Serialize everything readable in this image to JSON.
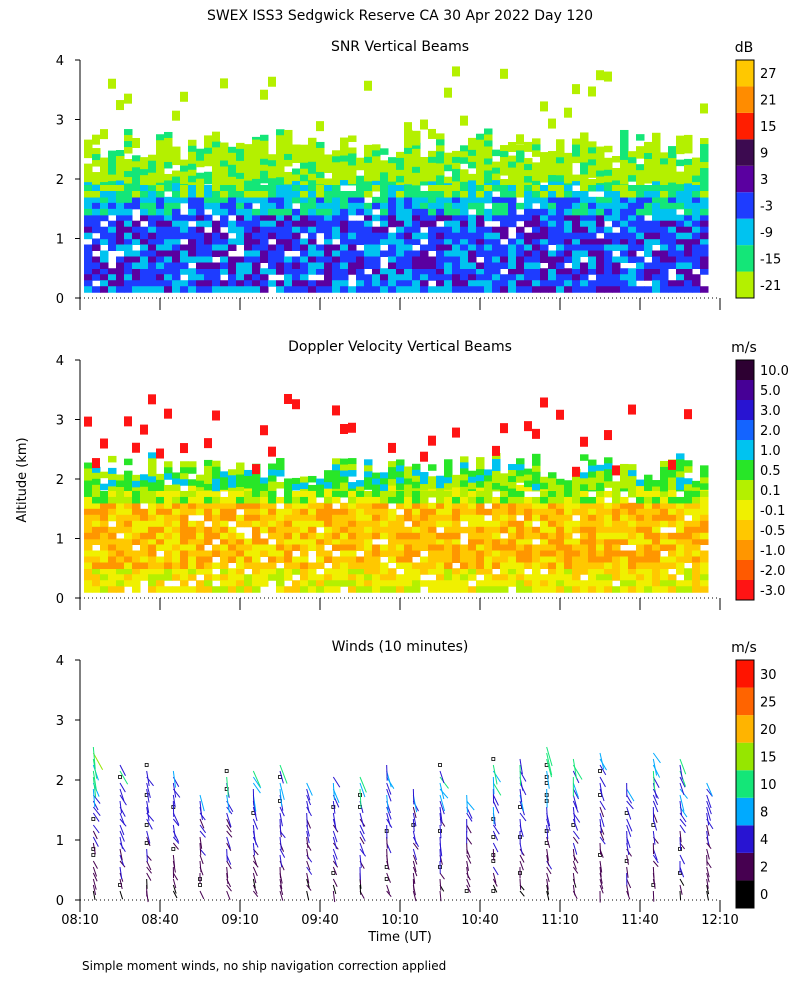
{
  "figure": {
    "title": "SWEX ISS3 Sedgwick Reserve CA  30 Apr 2022 Day 120",
    "ylabel": "Altitude (km)",
    "xlabel": "Time (UT)",
    "footnote": "Simple moment winds, no ship navigation correction applied"
  },
  "chart_data": [
    {
      "type": "heatmap",
      "title": "SNR Vertical Beams",
      "units": "dB",
      "x_ticks": [
        "08:10",
        "08:40",
        "09:10",
        "09:40",
        "10:10",
        "10:40",
        "11:10",
        "11:40",
        "12:10"
      ],
      "y_ticks": [
        0,
        1,
        2,
        3,
        4
      ],
      "xlim": [
        "08:10",
        "12:10"
      ],
      "ylim": [
        0,
        4
      ],
      "color_levels": [
        {
          "label": "-21",
          "color": "#b4f000"
        },
        {
          "label": "-15",
          "color": "#14e678"
        },
        {
          "label": "-9",
          "color": "#00c3f0"
        },
        {
          "label": "-3",
          "color": "#1e3cff"
        },
        {
          "label": "3",
          "color": "#5a00a0"
        },
        {
          "label": "9",
          "color": "#3c0a50"
        },
        {
          "label": "15",
          "color": "#ff1e00"
        },
        {
          "label": "21",
          "color": "#ff8c00"
        },
        {
          "label": "27",
          "color": "#ffc800"
        }
      ],
      "profile": [
        {
          "alt_max": 0.5,
          "level": "-3"
        },
        {
          "alt_max": 1.0,
          "level": "-3"
        },
        {
          "alt_max": 1.4,
          "level": "-3"
        },
        {
          "alt_max": 1.7,
          "level": "-9"
        },
        {
          "alt_max": 2.0,
          "level": "-15"
        },
        {
          "alt_max": 2.6,
          "level": "-21"
        }
      ]
    },
    {
      "type": "heatmap",
      "title": "Doppler Velocity Vertical Beams",
      "units": "m/s",
      "x_ticks": [
        "08:10",
        "08:40",
        "09:10",
        "09:40",
        "10:10",
        "10:40",
        "11:10",
        "11:40",
        "12:10"
      ],
      "y_ticks": [
        0,
        1,
        2,
        3,
        4
      ],
      "xlim": [
        "08:10",
        "12:10"
      ],
      "ylim": [
        0,
        4
      ],
      "color_levels": [
        {
          "label": "-3.0",
          "color": "#ff1414"
        },
        {
          "label": "-2.0",
          "color": "#ff5a00"
        },
        {
          "label": "-1.0",
          "color": "#ff9600"
        },
        {
          "label": "-0.5",
          "color": "#ffc800"
        },
        {
          "label": "-0.1",
          "color": "#f0f000"
        },
        {
          "label": "0.1",
          "color": "#b4f000"
        },
        {
          "label": "0.5",
          "color": "#28e628"
        },
        {
          "label": "1.0",
          "color": "#00c3f0"
        },
        {
          "label": "2.0",
          "color": "#1464ff"
        },
        {
          "label": "3.0",
          "color": "#2814d2"
        },
        {
          "label": "5.0",
          "color": "#460096"
        },
        {
          "label": "10.0",
          "color": "#2d0032"
        }
      ],
      "profile": [
        {
          "alt_max": 0.5,
          "level": "-0.1"
        },
        {
          "alt_max": 1.0,
          "level": "-0.5"
        },
        {
          "alt_max": 1.6,
          "level": "-0.5"
        },
        {
          "alt_max": 1.9,
          "level": "0.1"
        },
        {
          "alt_max": 2.2,
          "level": "0.5"
        }
      ]
    },
    {
      "type": "scatter",
      "title": "Winds (10 minutes)",
      "units": "m/s",
      "x_ticks": [
        "08:10",
        "08:40",
        "09:10",
        "09:40",
        "10:10",
        "10:40",
        "11:10",
        "11:40",
        "12:10"
      ],
      "y_ticks": [
        0,
        1,
        2,
        3,
        4
      ],
      "xlim": [
        "08:10",
        "12:10"
      ],
      "ylim": [
        0,
        4
      ],
      "color_levels": [
        {
          "label": "0",
          "color": "#000000"
        },
        {
          "label": "2",
          "color": "#460050"
        },
        {
          "label": "4",
          "color": "#2814d2"
        },
        {
          "label": "8",
          "color": "#00aaff"
        },
        {
          "label": "10",
          "color": "#14e678"
        },
        {
          "label": "15",
          "color": "#96e600"
        },
        {
          "label": "20",
          "color": "#ffb400"
        },
        {
          "label": "25",
          "color": "#ff6400"
        },
        {
          "label": "30",
          "color": "#ff1400"
        }
      ],
      "profile_times": [
        "08:15",
        "08:25",
        "08:35",
        "08:45",
        "08:55",
        "09:05",
        "09:15",
        "09:25",
        "09:35",
        "09:45",
        "09:55",
        "10:05",
        "10:15",
        "10:25",
        "10:35",
        "10:45",
        "10:55",
        "11:05",
        "11:15",
        "11:25",
        "11:35",
        "11:45",
        "11:55",
        "12:05"
      ],
      "typical_speed_by_altitude": [
        {
          "alt": 0.5,
          "speed_ms": 3
        },
        {
          "alt": 1.0,
          "speed_ms": 4
        },
        {
          "alt": 1.5,
          "speed_ms": 6
        },
        {
          "alt": 2.0,
          "speed_ms": 8
        },
        {
          "alt": 2.5,
          "speed_ms": 12
        }
      ]
    }
  ]
}
